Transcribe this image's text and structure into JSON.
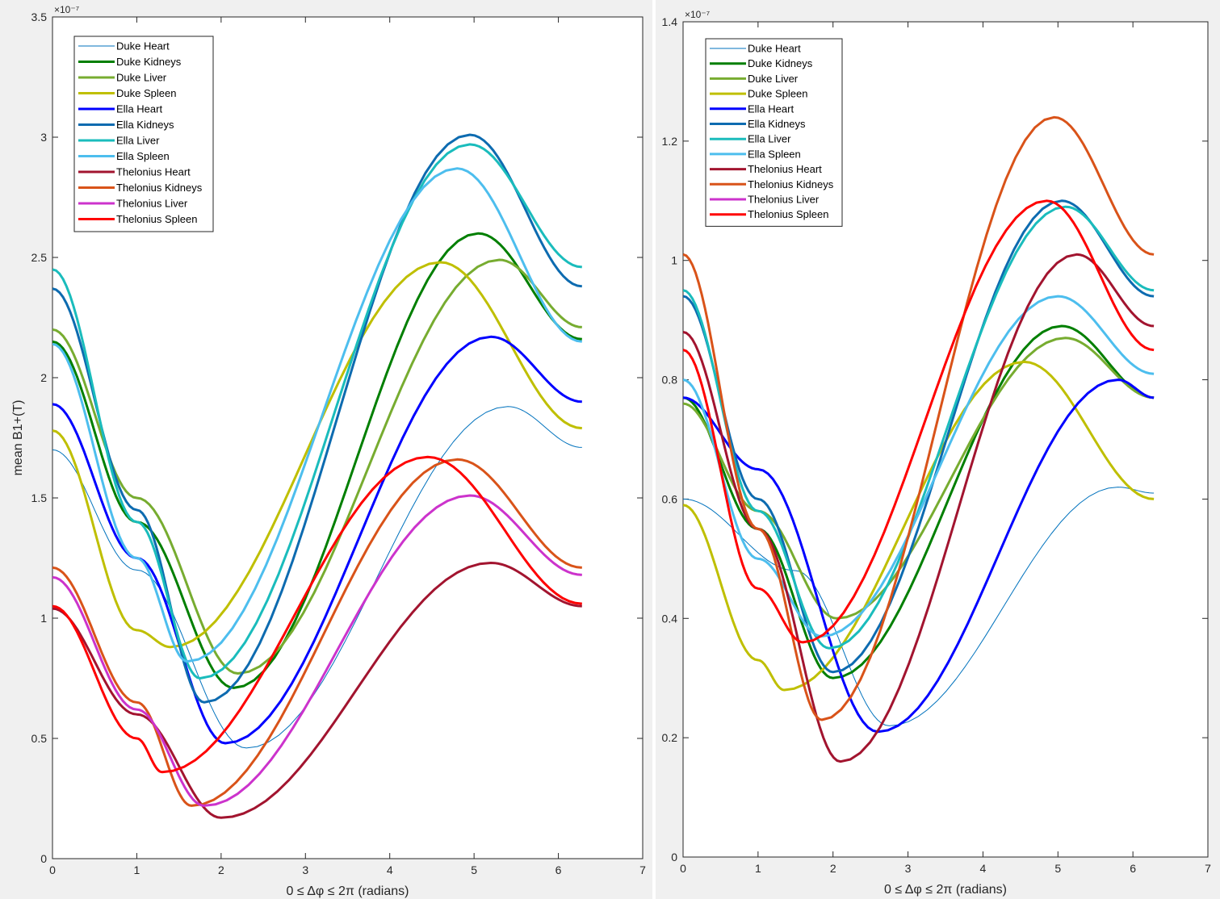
{
  "chart_data": [
    {
      "type": "line",
      "ylabel": "mean B1+(T)",
      "xlabel": "0 ≤ Δφ ≤ 2π (radians)",
      "xlim": [
        0,
        7
      ],
      "ylim": [
        0,
        3.5
      ],
      "x_ticks": [
        "0",
        "1",
        "2",
        "3",
        "4",
        "5",
        "6",
        "7"
      ],
      "y_ticks": [
        "0",
        "0.5",
        "1",
        "1.5",
        "2",
        "2.5",
        "3",
        "3.5"
      ],
      "y_exponent": "×10⁻⁷",
      "grid": false,
      "legend_position": "top-left",
      "series": [
        {
          "name": "Duke Heart",
          "color": "#0072bd",
          "width": 1,
          "x": [
            0,
            1.0,
            2.3,
            5.4,
            6.28
          ],
          "y": [
            1.7,
            1.2,
            0.46,
            1.88,
            1.71
          ]
        },
        {
          "name": "Duke Kidneys",
          "color": "#007f00",
          "width": 3,
          "x": [
            0,
            1.0,
            2.15,
            5.05,
            6.28
          ],
          "y": [
            2.15,
            1.4,
            0.71,
            2.6,
            2.16
          ]
        },
        {
          "name": "Duke Liver",
          "color": "#77ac30",
          "width": 3,
          "x": [
            0,
            1.0,
            2.2,
            5.3,
            6.28
          ],
          "y": [
            2.2,
            1.5,
            0.77,
            2.49,
            2.21
          ]
        },
        {
          "name": "Duke Spleen",
          "color": "#bfbf00",
          "width": 3,
          "x": [
            0,
            1.0,
            1.4,
            4.6,
            6.28
          ],
          "y": [
            1.78,
            0.95,
            0.88,
            2.48,
            1.79
          ]
        },
        {
          "name": "Ella Heart",
          "color": "#0000ff",
          "width": 3,
          "x": [
            0,
            1.0,
            2.05,
            5.2,
            6.28
          ],
          "y": [
            1.89,
            1.25,
            0.48,
            2.17,
            1.9
          ]
        },
        {
          "name": "Ella Kidneys",
          "color": "#0d6bb0",
          "width": 3,
          "x": [
            0,
            1.0,
            1.8,
            4.95,
            6.28
          ],
          "y": [
            2.37,
            1.45,
            0.65,
            3.01,
            2.38
          ]
        },
        {
          "name": "Ella Liver",
          "color": "#1abcbc",
          "width": 3,
          "x": [
            0,
            1.0,
            1.75,
            4.95,
            6.28
          ],
          "y": [
            2.45,
            1.4,
            0.75,
            2.97,
            2.46
          ]
        },
        {
          "name": "Ella Spleen",
          "color": "#4dbeee",
          "width": 3,
          "x": [
            0,
            1.0,
            1.6,
            4.8,
            6.28
          ],
          "y": [
            2.14,
            1.25,
            0.82,
            2.87,
            2.15
          ]
        },
        {
          "name": "Thelonius Heart",
          "color": "#a2142f",
          "width": 3,
          "x": [
            0,
            1.0,
            2.0,
            5.2,
            6.28
          ],
          "y": [
            1.04,
            0.6,
            0.17,
            1.23,
            1.05
          ]
        },
        {
          "name": "Thelonius Kidneys",
          "color": "#d95319",
          "width": 3,
          "x": [
            0,
            1.0,
            1.65,
            4.8,
            6.28
          ],
          "y": [
            1.21,
            0.65,
            0.22,
            1.66,
            1.21
          ]
        },
        {
          "name": "Thelonius Liver",
          "color": "#cc33cc",
          "width": 3,
          "x": [
            0,
            1.0,
            1.8,
            4.95,
            6.28
          ],
          "y": [
            1.17,
            0.62,
            0.22,
            1.51,
            1.18
          ]
        },
        {
          "name": "Thelonius Spleen",
          "color": "#ff0000",
          "width": 3,
          "x": [
            0,
            1.0,
            1.3,
            4.45,
            6.28
          ],
          "y": [
            1.05,
            0.5,
            0.36,
            1.67,
            1.06
          ]
        }
      ]
    },
    {
      "type": "line",
      "ylabel": "",
      "xlabel": "0 ≤ Δφ ≤ 2π (radians)",
      "xlim": [
        0,
        7
      ],
      "ylim": [
        0,
        1.4
      ],
      "x_ticks": [
        "0",
        "1",
        "2",
        "3",
        "4",
        "5",
        "6",
        "7"
      ],
      "y_ticks": [
        "0",
        "0.2",
        "0.4",
        "0.6",
        "0.8",
        "1",
        "1.2",
        "1.4"
      ],
      "y_exponent": "×10⁻⁷",
      "grid": false,
      "legend_position": "top-left",
      "series": [
        {
          "name": "Duke Heart",
          "color": "#0072bd",
          "width": 1,
          "x": [
            0,
            1.5,
            2.75,
            5.8,
            6.28
          ],
          "y": [
            0.6,
            0.48,
            0.22,
            0.62,
            0.61
          ]
        },
        {
          "name": "Duke Kidneys",
          "color": "#007f00",
          "width": 3,
          "x": [
            0,
            1.0,
            2.0,
            5.05,
            6.28
          ],
          "y": [
            0.77,
            0.55,
            0.3,
            0.89,
            0.77
          ]
        },
        {
          "name": "Duke Liver",
          "color": "#77ac30",
          "width": 3,
          "x": [
            0,
            1.0,
            2.05,
            5.1,
            6.28
          ],
          "y": [
            0.76,
            0.58,
            0.4,
            0.87,
            0.77
          ]
        },
        {
          "name": "Duke Spleen",
          "color": "#bfbf00",
          "width": 3,
          "x": [
            0,
            1.0,
            1.35,
            4.55,
            6.28
          ],
          "y": [
            0.59,
            0.33,
            0.28,
            0.83,
            0.6
          ]
        },
        {
          "name": "Ella Heart",
          "color": "#0000ff",
          "width": 3,
          "x": [
            0,
            1.0,
            2.6,
            5.8,
            6.28
          ],
          "y": [
            0.77,
            0.65,
            0.21,
            0.8,
            0.77
          ]
        },
        {
          "name": "Ella Kidneys",
          "color": "#0d6bb0",
          "width": 3,
          "x": [
            0,
            1.0,
            2.0,
            5.05,
            6.28
          ],
          "y": [
            0.94,
            0.6,
            0.31,
            1.1,
            0.94
          ]
        },
        {
          "name": "Ella Liver",
          "color": "#1abcbc",
          "width": 3,
          "x": [
            0,
            1.0,
            1.95,
            5.1,
            6.28
          ],
          "y": [
            0.95,
            0.58,
            0.35,
            1.09,
            0.95
          ]
        },
        {
          "name": "Ella Spleen",
          "color": "#4dbeee",
          "width": 3,
          "x": [
            0,
            1.0,
            1.85,
            5.0,
            6.28
          ],
          "y": [
            0.8,
            0.5,
            0.37,
            0.94,
            0.81
          ]
        },
        {
          "name": "Thelonius Heart",
          "color": "#a2142f",
          "width": 3,
          "x": [
            0,
            1.0,
            2.1,
            5.25,
            6.28
          ],
          "y": [
            0.88,
            0.55,
            0.16,
            1.01,
            0.89
          ]
        },
        {
          "name": "Thelonius Kidneys",
          "color": "#d95319",
          "width": 3,
          "x": [
            0,
            1.0,
            1.85,
            4.95,
            6.28
          ],
          "y": [
            1.01,
            0.55,
            0.23,
            1.24,
            1.01
          ]
        },
        {
          "name": "Thelonius Liver",
          "color": "#cc33cc",
          "width": 3,
          "x": [],
          "y": []
        },
        {
          "name": "Thelonius Spleen",
          "color": "#ff0000",
          "width": 3,
          "x": [
            0,
            1.0,
            1.6,
            4.85,
            6.28
          ],
          "y": [
            0.85,
            0.45,
            0.36,
            1.1,
            0.85
          ]
        }
      ]
    }
  ]
}
